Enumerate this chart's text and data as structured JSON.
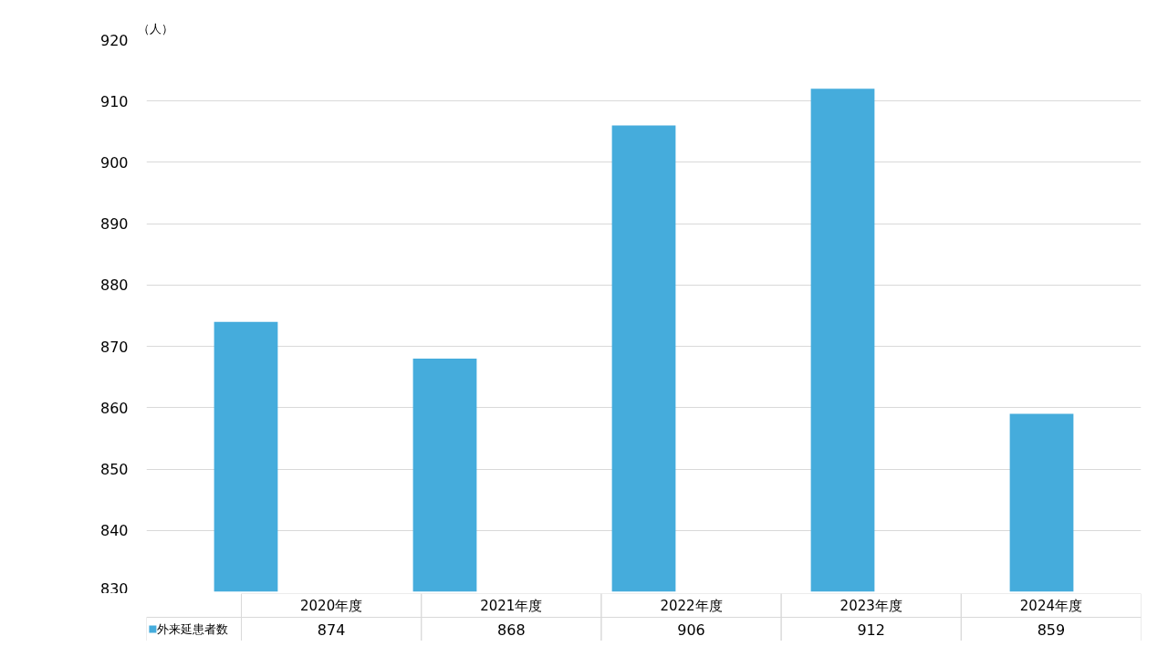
{
  "chart_data": {
    "type": "bar",
    "ylabel": "（人）",
    "categories": [
      "2020年度",
      "2021年度",
      "2022年度",
      "2023年度",
      "2024年度"
    ],
    "series": [
      {
        "name": "外来延患者数",
        "color": "#45acdc",
        "values": [
          874,
          868,
          906,
          912,
          859
        ]
      }
    ],
    "ylim": [
      830,
      920
    ],
    "yticks": [
      830,
      840,
      850,
      860,
      870,
      880,
      890,
      900,
      910,
      920
    ],
    "grid": "y",
    "legend": "bottom left",
    "data_labels": true
  }
}
